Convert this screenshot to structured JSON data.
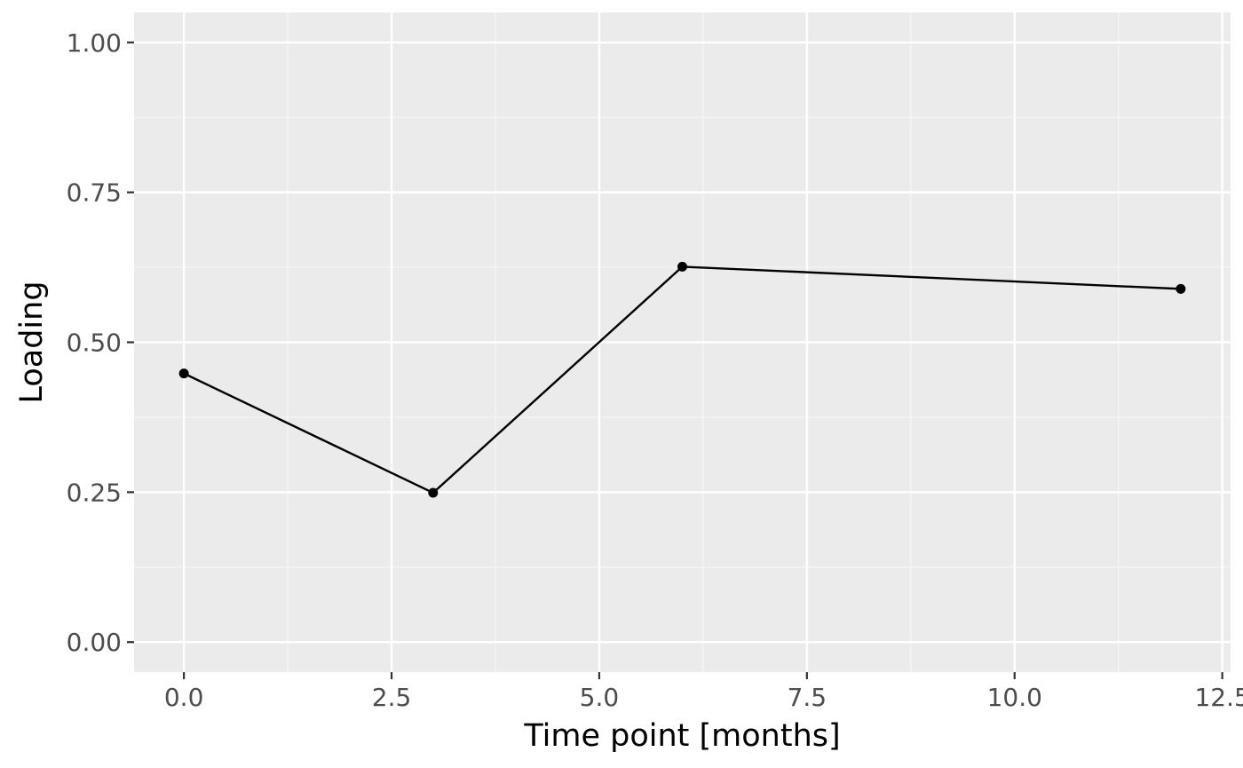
{
  "chart_data": {
    "type": "line",
    "xlabel": "Time point [months]",
    "ylabel": "Loading",
    "xlim": [
      -0.6,
      12.6
    ],
    "ylim": [
      -0.05,
      1.05
    ],
    "x_ticks": [
      0.0,
      2.5,
      5.0,
      7.5,
      10.0,
      12.5
    ],
    "x_tick_labels": [
      "0.0",
      "2.5",
      "5.0",
      "7.5",
      "10.0",
      "12.5"
    ],
    "y_ticks": [
      0.0,
      0.25,
      0.5,
      0.75,
      1.0
    ],
    "y_tick_labels": [
      "0.00",
      "0.25",
      "0.50",
      "0.75",
      "1.00"
    ],
    "grid": true,
    "legend": "none",
    "series": [
      {
        "x": [
          0,
          3,
          6,
          12
        ],
        "values": [
          0.448,
          0.249,
          0.626,
          0.589
        ],
        "color": "#000000"
      }
    ],
    "colors": {
      "panel_background": "#ebebeb",
      "grid_major": "#ffffff",
      "grid_minor": "#f7f7f7",
      "tick_mark": "#333333",
      "tick_text": "#4d4d4d",
      "title_text": "#000000"
    }
  }
}
